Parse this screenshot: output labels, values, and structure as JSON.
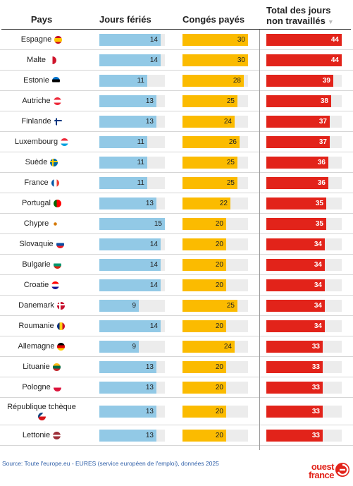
{
  "headers": {
    "pays": "Pays",
    "jours_feries": "Jours fériés",
    "conges_payes": "Congés payés",
    "total_line1": "Total des jours",
    "total_line2": "non travaillés"
  },
  "source": "Source: Toute l'europe.eu - EURES (service européen de l'emploi), données 2025",
  "logo": {
    "line1": "ouest",
    "line2": "france"
  },
  "colors": {
    "jours_feries": "#92c9e6",
    "conges_payes": "#fbbb00",
    "total": "#e2231a",
    "track": "#ececec"
  },
  "chart_data": {
    "type": "table",
    "columns": [
      "Pays",
      "Jours fériés",
      "Congés payés",
      "Total des jours non travaillés"
    ],
    "sorted_by": "Total des jours non travaillés (descending)",
    "ranges": {
      "jours_feries": [
        0,
        15
      ],
      "conges_payes": [
        0,
        30
      ],
      "total": [
        0,
        44
      ]
    },
    "rows": [
      {
        "country": "Espagne",
        "flag": "es",
        "jf": 14,
        "cp": 30,
        "total": 44
      },
      {
        "country": "Malte",
        "flag": "mt",
        "jf": 14,
        "cp": 30,
        "total": 44
      },
      {
        "country": "Estonie",
        "flag": "ee",
        "jf": 11,
        "cp": 28,
        "total": 39
      },
      {
        "country": "Autriche",
        "flag": "at",
        "jf": 13,
        "cp": 25,
        "total": 38
      },
      {
        "country": "Finlande",
        "flag": "fi",
        "jf": 13,
        "cp": 24,
        "total": 37
      },
      {
        "country": "Luxembourg",
        "flag": "lu",
        "jf": 11,
        "cp": 26,
        "total": 37
      },
      {
        "country": "Suède",
        "flag": "se",
        "jf": 11,
        "cp": 25,
        "total": 36
      },
      {
        "country": "France",
        "flag": "fr",
        "jf": 11,
        "cp": 25,
        "total": 36
      },
      {
        "country": "Portugal",
        "flag": "pt",
        "jf": 13,
        "cp": 22,
        "total": 35
      },
      {
        "country": "Chypre",
        "flag": "cy",
        "jf": 15,
        "cp": 20,
        "total": 35
      },
      {
        "country": "Slovaquie",
        "flag": "sk",
        "jf": 14,
        "cp": 20,
        "total": 34
      },
      {
        "country": "Bulgarie",
        "flag": "bg",
        "jf": 14,
        "cp": 20,
        "total": 34
      },
      {
        "country": "Croatie",
        "flag": "hr",
        "jf": 14,
        "cp": 20,
        "total": 34
      },
      {
        "country": "Danemark",
        "flag": "dk",
        "jf": 9,
        "cp": 25,
        "total": 34
      },
      {
        "country": "Roumanie",
        "flag": "ro",
        "jf": 14,
        "cp": 20,
        "total": 34
      },
      {
        "country": "Allemagne",
        "flag": "de",
        "jf": 9,
        "cp": 24,
        "total": 33
      },
      {
        "country": "Lituanie",
        "flag": "lt",
        "jf": 13,
        "cp": 20,
        "total": 33
      },
      {
        "country": "Pologne",
        "flag": "pl",
        "jf": 13,
        "cp": 20,
        "total": 33
      },
      {
        "country": "République tchèque",
        "flag": "cz",
        "jf": 13,
        "cp": 20,
        "total": 33
      },
      {
        "country": "Lettonie",
        "flag": "lv",
        "jf": 13,
        "cp": 20,
        "total": 33
      }
    ]
  }
}
